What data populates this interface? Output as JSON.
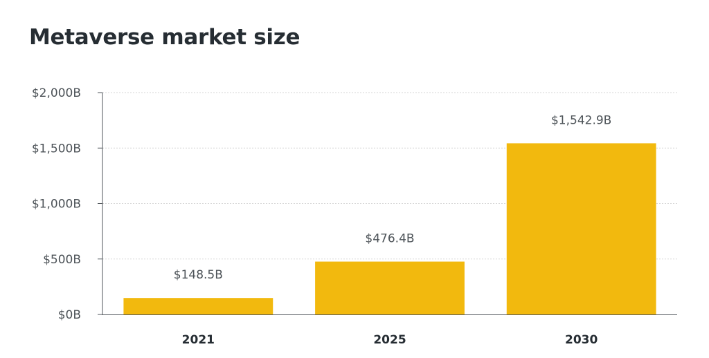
{
  "chart_data": {
    "type": "bar",
    "title": "Metaverse market size",
    "categories": [
      "2021",
      "2025",
      "2030"
    ],
    "values": [
      148.5,
      476.4,
      1542.9
    ],
    "data_labels": [
      "$148.5B",
      "$476.4B",
      "$1,542.9B"
    ],
    "ylim": [
      0,
      2000
    ],
    "yticks": [
      0,
      500,
      1000,
      1500,
      2000
    ],
    "ytick_labels": [
      "$0B",
      "$500B",
      "$1,000B",
      "$1,500B",
      "$2,000B"
    ],
    "xlabel": "",
    "ylabel": "",
    "grid": true,
    "legend": "none",
    "colors": {
      "bar": "#f2b90e",
      "grid": "#d6d6d6",
      "axis": "#4d5358"
    }
  }
}
